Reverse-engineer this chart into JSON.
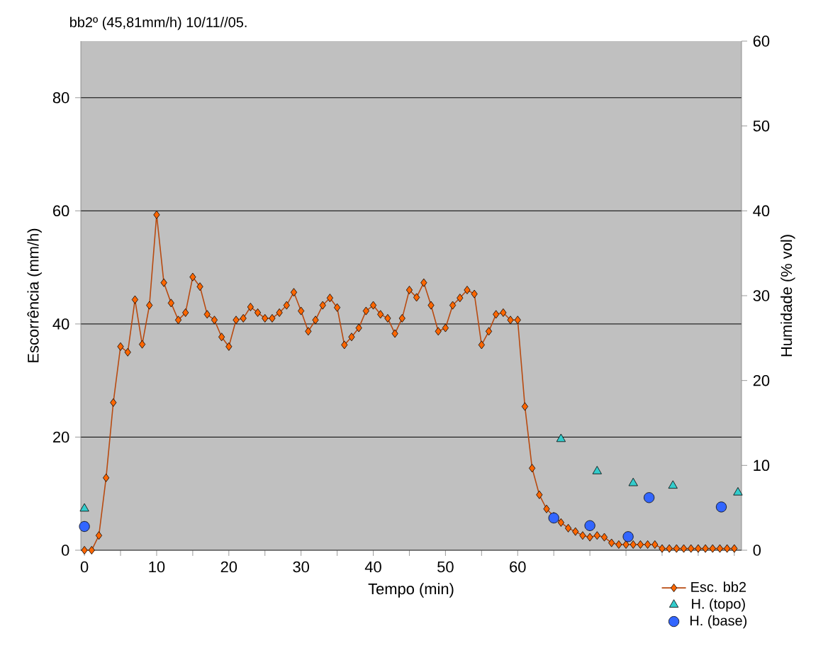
{
  "chart_data": {
    "type": "line",
    "title": "bb2º (45,81mm/h) 10/11//05.",
    "xlabel": "Tempo (min)",
    "ylabel": "Escorrência (mm/h)",
    "y2label": "Humidade (% vol)",
    "xlim": [
      -0.5,
      91
    ],
    "xticks": [
      0,
      {
        "value": 5,
        "label": null
      },
      10,
      {
        "value": 15,
        "label": null
      },
      20,
      {
        "value": 25,
        "label": null
      },
      30,
      {
        "value": 35,
        "label": null
      },
      40,
      {
        "value": 45,
        "label": null
      },
      50,
      {
        "value": 55,
        "label": null
      },
      60,
      {
        "value": 65,
        "label": null
      },
      {
        "value": 70,
        "label": null
      },
      {
        "value": 75,
        "label": null
      },
      {
        "value": 80,
        "label": null
      },
      {
        "value": 85,
        "label": null
      },
      {
        "value": 90,
        "label": null
      }
    ],
    "ylim": [
      0,
      90
    ],
    "yticks": [
      0,
      20,
      40,
      60,
      80
    ],
    "y2lim": [
      0,
      60
    ],
    "y2ticks": [
      0,
      10,
      20,
      30,
      40,
      50,
      60
    ],
    "grid": "y",
    "legend": "bottom right",
    "series": [
      {
        "name": "Esc. bb2",
        "marker": "diamond",
        "color": "#ff6600",
        "x": [
          0,
          1,
          2,
          3,
          4,
          5,
          6,
          7,
          8,
          9,
          10,
          11,
          12,
          13,
          14,
          15,
          16,
          17,
          18,
          19,
          20,
          21,
          22,
          23,
          24,
          25,
          26,
          27,
          28,
          29,
          30,
          31,
          32,
          33,
          34,
          35,
          36,
          37,
          38,
          39,
          40,
          41,
          42,
          43,
          44,
          45,
          46,
          47,
          48,
          49,
          50,
          51,
          52,
          53,
          54,
          55,
          56,
          57,
          58,
          59,
          60,
          61,
          62,
          63,
          64,
          65,
          66,
          67,
          68,
          69,
          70,
          71,
          72,
          73,
          74,
          75,
          76,
          77,
          78,
          79,
          80,
          81,
          82,
          83,
          84,
          85,
          86,
          87,
          88,
          89,
          90
        ],
        "values": [
          0,
          0,
          2.6,
          12.8,
          26.1,
          36,
          35,
          44.3,
          36.4,
          43.3,
          59.3,
          47.3,
          43.7,
          40.7,
          42,
          48.3,
          46.6,
          41.7,
          40.7,
          37.7,
          36,
          40.7,
          41,
          43,
          42,
          41,
          41,
          42,
          43.3,
          45.6,
          42.3,
          38.7,
          40.7,
          43.3,
          44.6,
          42.9,
          36.3,
          37.7,
          39.3,
          42.3,
          43.3,
          41.7,
          41,
          38.3,
          41,
          46,
          44.7,
          47.3,
          43.3,
          38.7,
          39.3,
          43.3,
          44.6,
          46,
          45.3,
          36.3,
          38.7,
          41.7,
          42,
          40.7,
          40.7,
          25.4,
          14.5,
          9.8,
          7.3,
          6,
          4.9,
          3.9,
          3.3,
          2.6,
          2.3,
          2.6,
          2.3,
          1.3,
          1,
          1,
          1,
          1,
          1,
          1,
          0.3,
          0.3,
          0.3,
          0.3,
          0.3,
          0.3,
          0.3,
          0.3,
          0.3,
          0.3,
          0.3
        ]
      },
      {
        "name": "H. (topo)",
        "type": "scatter",
        "marker": "triangle",
        "color": "#33cccc",
        "axis": "y2",
        "x": [
          0,
          66,
          71,
          76,
          81.5,
          90.5
        ],
        "values": [
          4.9,
          13.1,
          9.3,
          7.9,
          7.6,
          6.8
        ]
      },
      {
        "name": "H. (base)",
        "type": "scatter",
        "marker": "circle",
        "color": "#3366ff",
        "axis": "y2",
        "x": [
          0,
          65,
          70,
          75.3,
          78.2,
          88.2
        ],
        "values": [
          2.8,
          3.8,
          2.9,
          1.6,
          6.2,
          5.1
        ]
      }
    ]
  }
}
